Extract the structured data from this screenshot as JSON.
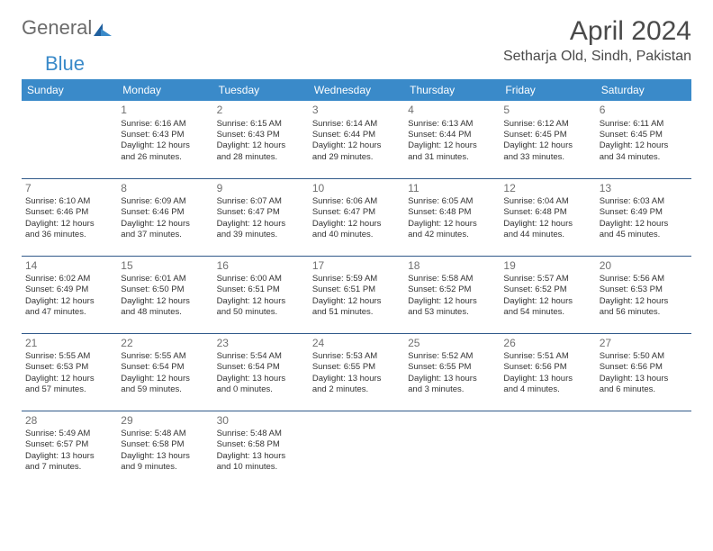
{
  "logo": {
    "text_general": "General",
    "text_blue": "Blue"
  },
  "header": {
    "month_title": "April 2024",
    "location": "Setharja Old, Sindh, Pakistan"
  },
  "colors": {
    "header_bg": "#3a8ac9",
    "header_text": "#ffffff",
    "row_border": "#315a8a",
    "daynum": "#707070",
    "body_text": "#333333",
    "logo_gray": "#6b6b6b",
    "logo_blue": "#3a8ac9",
    "logo_dark": "#1f5f9e"
  },
  "day_headers": [
    "Sunday",
    "Monday",
    "Tuesday",
    "Wednesday",
    "Thursday",
    "Friday",
    "Saturday"
  ],
  "weeks": [
    [
      null,
      {
        "n": "1",
        "sr": "6:16 AM",
        "ss": "6:43 PM",
        "d1": "12 hours",
        "d2": "and 26 minutes."
      },
      {
        "n": "2",
        "sr": "6:15 AM",
        "ss": "6:43 PM",
        "d1": "12 hours",
        "d2": "and 28 minutes."
      },
      {
        "n": "3",
        "sr": "6:14 AM",
        "ss": "6:44 PM",
        "d1": "12 hours",
        "d2": "and 29 minutes."
      },
      {
        "n": "4",
        "sr": "6:13 AM",
        "ss": "6:44 PM",
        "d1": "12 hours",
        "d2": "and 31 minutes."
      },
      {
        "n": "5",
        "sr": "6:12 AM",
        "ss": "6:45 PM",
        "d1": "12 hours",
        "d2": "and 33 minutes."
      },
      {
        "n": "6",
        "sr": "6:11 AM",
        "ss": "6:45 PM",
        "d1": "12 hours",
        "d2": "and 34 minutes."
      }
    ],
    [
      {
        "n": "7",
        "sr": "6:10 AM",
        "ss": "6:46 PM",
        "d1": "12 hours",
        "d2": "and 36 minutes."
      },
      {
        "n": "8",
        "sr": "6:09 AM",
        "ss": "6:46 PM",
        "d1": "12 hours",
        "d2": "and 37 minutes."
      },
      {
        "n": "9",
        "sr": "6:07 AM",
        "ss": "6:47 PM",
        "d1": "12 hours",
        "d2": "and 39 minutes."
      },
      {
        "n": "10",
        "sr": "6:06 AM",
        "ss": "6:47 PM",
        "d1": "12 hours",
        "d2": "and 40 minutes."
      },
      {
        "n": "11",
        "sr": "6:05 AM",
        "ss": "6:48 PM",
        "d1": "12 hours",
        "d2": "and 42 minutes."
      },
      {
        "n": "12",
        "sr": "6:04 AM",
        "ss": "6:48 PM",
        "d1": "12 hours",
        "d2": "and 44 minutes."
      },
      {
        "n": "13",
        "sr": "6:03 AM",
        "ss": "6:49 PM",
        "d1": "12 hours",
        "d2": "and 45 minutes."
      }
    ],
    [
      {
        "n": "14",
        "sr": "6:02 AM",
        "ss": "6:49 PM",
        "d1": "12 hours",
        "d2": "and 47 minutes."
      },
      {
        "n": "15",
        "sr": "6:01 AM",
        "ss": "6:50 PM",
        "d1": "12 hours",
        "d2": "and 48 minutes."
      },
      {
        "n": "16",
        "sr": "6:00 AM",
        "ss": "6:51 PM",
        "d1": "12 hours",
        "d2": "and 50 minutes."
      },
      {
        "n": "17",
        "sr": "5:59 AM",
        "ss": "6:51 PM",
        "d1": "12 hours",
        "d2": "and 51 minutes."
      },
      {
        "n": "18",
        "sr": "5:58 AM",
        "ss": "6:52 PM",
        "d1": "12 hours",
        "d2": "and 53 minutes."
      },
      {
        "n": "19",
        "sr": "5:57 AM",
        "ss": "6:52 PM",
        "d1": "12 hours",
        "d2": "and 54 minutes."
      },
      {
        "n": "20",
        "sr": "5:56 AM",
        "ss": "6:53 PM",
        "d1": "12 hours",
        "d2": "and 56 minutes."
      }
    ],
    [
      {
        "n": "21",
        "sr": "5:55 AM",
        "ss": "6:53 PM",
        "d1": "12 hours",
        "d2": "and 57 minutes."
      },
      {
        "n": "22",
        "sr": "5:55 AM",
        "ss": "6:54 PM",
        "d1": "12 hours",
        "d2": "and 59 minutes."
      },
      {
        "n": "23",
        "sr": "5:54 AM",
        "ss": "6:54 PM",
        "d1": "13 hours",
        "d2": "and 0 minutes."
      },
      {
        "n": "24",
        "sr": "5:53 AM",
        "ss": "6:55 PM",
        "d1": "13 hours",
        "d2": "and 2 minutes."
      },
      {
        "n": "25",
        "sr": "5:52 AM",
        "ss": "6:55 PM",
        "d1": "13 hours",
        "d2": "and 3 minutes."
      },
      {
        "n": "26",
        "sr": "5:51 AM",
        "ss": "6:56 PM",
        "d1": "13 hours",
        "d2": "and 4 minutes."
      },
      {
        "n": "27",
        "sr": "5:50 AM",
        "ss": "6:56 PM",
        "d1": "13 hours",
        "d2": "and 6 minutes."
      }
    ],
    [
      {
        "n": "28",
        "sr": "5:49 AM",
        "ss": "6:57 PM",
        "d1": "13 hours",
        "d2": "and 7 minutes."
      },
      {
        "n": "29",
        "sr": "5:48 AM",
        "ss": "6:58 PM",
        "d1": "13 hours",
        "d2": "and 9 minutes."
      },
      {
        "n": "30",
        "sr": "5:48 AM",
        "ss": "6:58 PM",
        "d1": "13 hours",
        "d2": "and 10 minutes."
      },
      null,
      null,
      null,
      null
    ]
  ],
  "labels": {
    "sunrise_prefix": "Sunrise: ",
    "sunset_prefix": "Sunset: ",
    "daylight_prefix": "Daylight: "
  }
}
